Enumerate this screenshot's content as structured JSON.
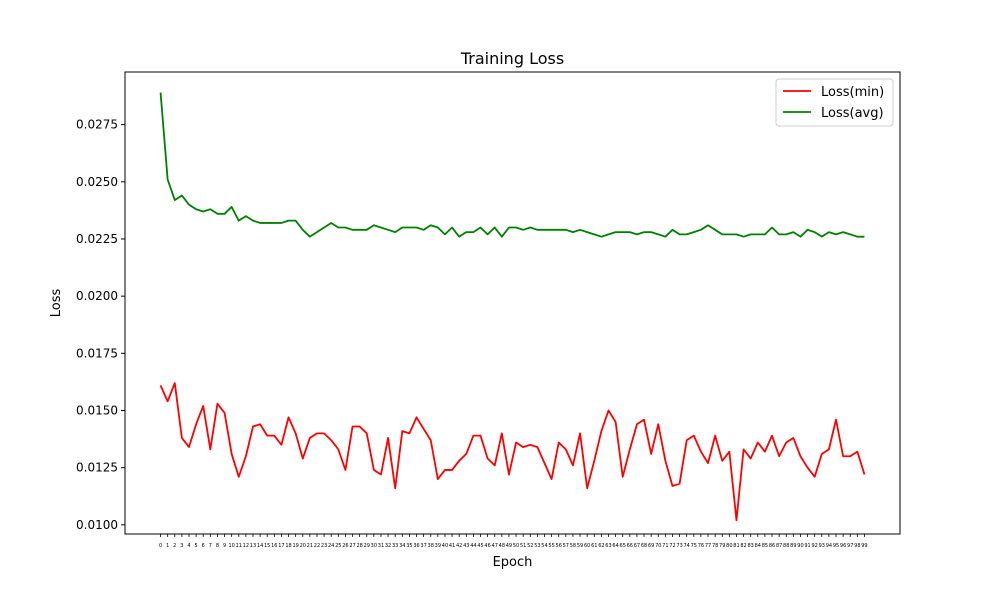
{
  "chart_data": {
    "type": "line",
    "title": "Training Loss",
    "xlabel": "Epoch",
    "ylabel": "Loss",
    "xlim": [
      -5,
      104
    ],
    "ylim": [
      0.0096,
      0.0298
    ],
    "y_ticks": [
      0.01,
      0.0125,
      0.015,
      0.0175,
      0.02,
      0.0225,
      0.025,
      0.0275
    ],
    "y_tick_labels": [
      "0.0100",
      "0.0125",
      "0.0150",
      "0.0175",
      "0.0200",
      "0.0225",
      "0.0250",
      "0.0275"
    ],
    "x_tick_labels": [
      "0",
      "1",
      "2",
      "3",
      "4",
      "5",
      "6",
      "7",
      "8",
      "9",
      "10",
      "11",
      "12",
      "13",
      "14",
      "15",
      "16",
      "17",
      "18",
      "19",
      "20",
      "21",
      "22",
      "23",
      "24",
      "25",
      "26",
      "27",
      "28",
      "29",
      "30",
      "31",
      "32",
      "33",
      "34",
      "35",
      "36",
      "37",
      "38",
      "39",
      "40",
      "41",
      "42",
      "43",
      "44",
      "45",
      "46",
      "47",
      "48",
      "49",
      "50",
      "51",
      "52",
      "53",
      "54",
      "55",
      "56",
      "57",
      "58",
      "59",
      "60",
      "61",
      "62",
      "63",
      "64",
      "65",
      "66",
      "67",
      "68",
      "69",
      "70",
      "71",
      "72",
      "73",
      "74",
      "75",
      "76",
      "77",
      "78",
      "79",
      "80",
      "81",
      "82",
      "83",
      "84",
      "85",
      "86",
      "87",
      "88",
      "89",
      "90",
      "91",
      "92",
      "93",
      "94",
      "95",
      "96",
      "97",
      "98",
      "99"
    ],
    "grid": false,
    "legend_position": "top-right",
    "series": [
      {
        "name": "Loss(min)",
        "color": "#ff0000",
        "values": [
          0.0161,
          0.0154,
          0.0162,
          0.0138,
          0.0134,
          0.0144,
          0.0152,
          0.0133,
          0.0153,
          0.0149,
          0.0131,
          0.0121,
          0.013,
          0.0143,
          0.0144,
          0.0139,
          0.0139,
          0.0135,
          0.0147,
          0.014,
          0.0129,
          0.0138,
          0.014,
          0.014,
          0.0137,
          0.0133,
          0.0124,
          0.0143,
          0.0143,
          0.014,
          0.0124,
          0.0122,
          0.0138,
          0.0116,
          0.0141,
          0.014,
          0.0147,
          0.0142,
          0.0137,
          0.012,
          0.0124,
          0.0124,
          0.0128,
          0.0131,
          0.0139,
          0.0139,
          0.0129,
          0.0126,
          0.014,
          0.0122,
          0.0136,
          0.0134,
          0.0135,
          0.0134,
          0.0127,
          0.012,
          0.0136,
          0.0133,
          0.0126,
          0.014,
          0.0116,
          0.0128,
          0.0141,
          0.015,
          0.0145,
          0.0121,
          0.0133,
          0.0144,
          0.0146,
          0.0131,
          0.0144,
          0.0128,
          0.0117,
          0.0118,
          0.0137,
          0.0139,
          0.0132,
          0.0127,
          0.0139,
          0.0128,
          0.0132,
          0.0102,
          0.0133,
          0.0129,
          0.0136,
          0.0132,
          0.0139,
          0.013,
          0.0136,
          0.0138,
          0.013,
          0.0125,
          0.0121,
          0.0131,
          0.0133,
          0.0146,
          0.013,
          0.013,
          0.0132,
          0.0122
        ]
      },
      {
        "name": "Loss(avg)",
        "color": "#008000",
        "values": [
          0.0289,
          0.0251,
          0.0242,
          0.0244,
          0.024,
          0.0238,
          0.0237,
          0.0238,
          0.0236,
          0.0236,
          0.0239,
          0.0233,
          0.0235,
          0.0233,
          0.0232,
          0.0232,
          0.0232,
          0.0232,
          0.0233,
          0.0233,
          0.0229,
          0.0226,
          0.0228,
          0.023,
          0.0232,
          0.023,
          0.023,
          0.0229,
          0.0229,
          0.0229,
          0.0231,
          0.023,
          0.0229,
          0.0228,
          0.023,
          0.023,
          0.023,
          0.0229,
          0.0231,
          0.023,
          0.0227,
          0.023,
          0.0226,
          0.0228,
          0.0228,
          0.023,
          0.0227,
          0.023,
          0.0226,
          0.023,
          0.023,
          0.0229,
          0.023,
          0.0229,
          0.0229,
          0.0229,
          0.0229,
          0.0229,
          0.0228,
          0.0229,
          0.0228,
          0.0227,
          0.0226,
          0.0227,
          0.0228,
          0.0228,
          0.0228,
          0.0227,
          0.0228,
          0.0228,
          0.0227,
          0.0226,
          0.0229,
          0.0227,
          0.0227,
          0.0228,
          0.0229,
          0.0231,
          0.0229,
          0.0227,
          0.0227,
          0.0227,
          0.0226,
          0.0227,
          0.0227,
          0.0227,
          0.023,
          0.0227,
          0.0227,
          0.0228,
          0.0226,
          0.0229,
          0.0228,
          0.0226,
          0.0228,
          0.0227,
          0.0228,
          0.0227,
          0.0226,
          0.0226
        ]
      }
    ]
  }
}
